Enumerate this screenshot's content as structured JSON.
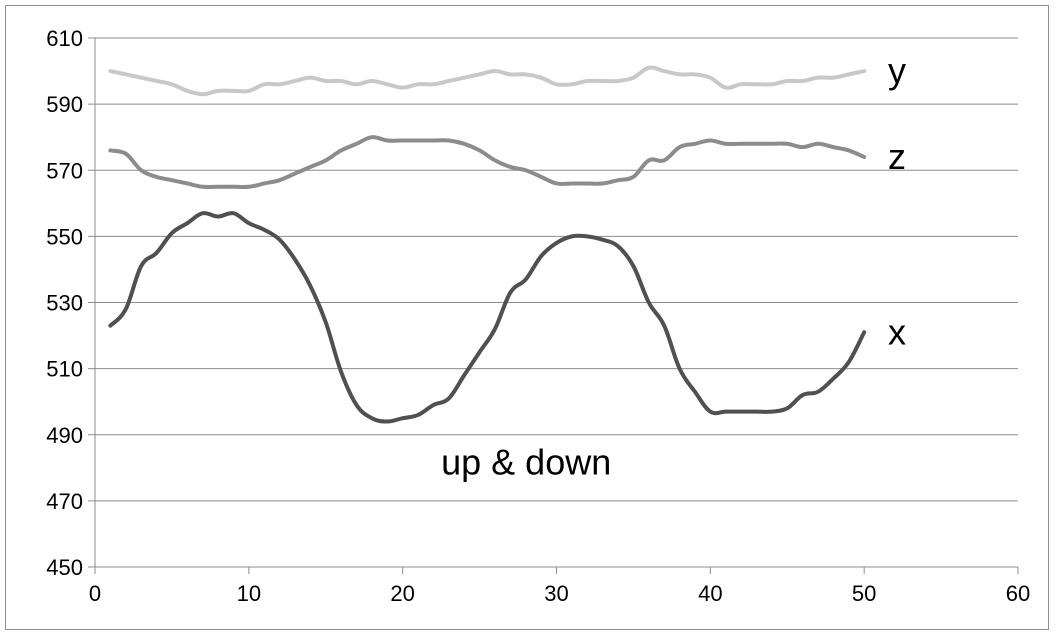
{
  "chart_data": {
    "type": "line",
    "title": "",
    "xlabel": "",
    "ylabel": "",
    "xlim": [
      0,
      60
    ],
    "ylim": [
      450,
      610
    ],
    "x_ticks": [
      "0",
      "10",
      "20",
      "30",
      "40",
      "50",
      "60"
    ],
    "y_ticks": [
      "450",
      "470",
      "490",
      "510",
      "530",
      "550",
      "570",
      "590",
      "610"
    ],
    "grid": "horizontal",
    "legend": "none",
    "annotation": "up & down",
    "series": [
      {
        "name": "y",
        "color": "#c8c8c8",
        "points": [
          [
            1,
            600
          ],
          [
            2,
            599
          ],
          [
            3,
            598
          ],
          [
            4,
            597
          ],
          [
            5,
            596
          ],
          [
            6,
            594
          ],
          [
            7,
            593
          ],
          [
            8,
            594
          ],
          [
            9,
            594
          ],
          [
            10,
            594
          ],
          [
            11,
            596
          ],
          [
            12,
            596
          ],
          [
            13,
            597
          ],
          [
            14,
            598
          ],
          [
            15,
            597
          ],
          [
            16,
            597
          ],
          [
            17,
            596
          ],
          [
            18,
            597
          ],
          [
            19,
            596
          ],
          [
            20,
            595
          ],
          [
            21,
            596
          ],
          [
            22,
            596
          ],
          [
            23,
            597
          ],
          [
            24,
            598
          ],
          [
            25,
            599
          ],
          [
            26,
            600
          ],
          [
            27,
            599
          ],
          [
            28,
            599
          ],
          [
            29,
            598
          ],
          [
            30,
            596
          ],
          [
            31,
            596
          ],
          [
            32,
            597
          ],
          [
            33,
            597
          ],
          [
            34,
            597
          ],
          [
            35,
            598
          ],
          [
            36,
            601
          ],
          [
            37,
            600
          ],
          [
            38,
            599
          ],
          [
            39,
            599
          ],
          [
            40,
            598
          ],
          [
            41,
            595
          ],
          [
            42,
            596
          ],
          [
            43,
            596
          ],
          [
            44,
            596
          ],
          [
            45,
            597
          ],
          [
            46,
            597
          ],
          [
            47,
            598
          ],
          [
            48,
            598
          ],
          [
            49,
            599
          ],
          [
            50,
            600
          ]
        ]
      },
      {
        "name": "z",
        "color": "#8c8c8c",
        "points": [
          [
            1,
            576
          ],
          [
            2,
            575
          ],
          [
            3,
            570
          ],
          [
            4,
            568
          ],
          [
            5,
            567
          ],
          [
            6,
            566
          ],
          [
            7,
            565
          ],
          [
            8,
            565
          ],
          [
            9,
            565
          ],
          [
            10,
            565
          ],
          [
            11,
            566
          ],
          [
            12,
            567
          ],
          [
            13,
            569
          ],
          [
            14,
            571
          ],
          [
            15,
            573
          ],
          [
            16,
            576
          ],
          [
            17,
            578
          ],
          [
            18,
            580
          ],
          [
            19,
            579
          ],
          [
            20,
            579
          ],
          [
            21,
            579
          ],
          [
            22,
            579
          ],
          [
            23,
            579
          ],
          [
            24,
            578
          ],
          [
            25,
            576
          ],
          [
            26,
            573
          ],
          [
            27,
            571
          ],
          [
            28,
            570
          ],
          [
            29,
            568
          ],
          [
            30,
            566
          ],
          [
            31,
            566
          ],
          [
            32,
            566
          ],
          [
            33,
            566
          ],
          [
            34,
            567
          ],
          [
            35,
            568
          ],
          [
            36,
            573
          ],
          [
            37,
            573
          ],
          [
            38,
            577
          ],
          [
            39,
            578
          ],
          [
            40,
            579
          ],
          [
            41,
            578
          ],
          [
            42,
            578
          ],
          [
            43,
            578
          ],
          [
            44,
            578
          ],
          [
            45,
            578
          ],
          [
            46,
            577
          ],
          [
            47,
            578
          ],
          [
            48,
            577
          ],
          [
            49,
            576
          ],
          [
            50,
            574
          ]
        ]
      },
      {
        "name": "x",
        "color": "#505050",
        "points": [
          [
            1,
            523
          ],
          [
            2,
            528
          ],
          [
            3,
            541
          ],
          [
            4,
            545
          ],
          [
            5,
            551
          ],
          [
            6,
            554
          ],
          [
            7,
            557
          ],
          [
            8,
            556
          ],
          [
            9,
            557
          ],
          [
            10,
            554
          ],
          [
            11,
            552
          ],
          [
            12,
            549
          ],
          [
            13,
            543
          ],
          [
            14,
            535
          ],
          [
            15,
            524
          ],
          [
            16,
            509
          ],
          [
            17,
            499
          ],
          [
            18,
            495
          ],
          [
            19,
            494
          ],
          [
            20,
            495
          ],
          [
            21,
            496
          ],
          [
            22,
            499
          ],
          [
            23,
            501
          ],
          [
            24,
            508
          ],
          [
            25,
            515
          ],
          [
            26,
            522
          ],
          [
            27,
            533
          ],
          [
            28,
            537
          ],
          [
            29,
            544
          ],
          [
            30,
            548
          ],
          [
            31,
            550
          ],
          [
            32,
            550
          ],
          [
            33,
            549
          ],
          [
            34,
            547
          ],
          [
            35,
            541
          ],
          [
            36,
            530
          ],
          [
            37,
            523
          ],
          [
            38,
            510
          ],
          [
            39,
            503
          ],
          [
            40,
            497
          ],
          [
            41,
            497
          ],
          [
            42,
            497
          ],
          [
            43,
            497
          ],
          [
            44,
            497
          ],
          [
            45,
            498
          ],
          [
            46,
            502
          ],
          [
            47,
            503
          ],
          [
            48,
            507
          ],
          [
            49,
            512
          ],
          [
            50,
            521
          ]
        ]
      }
    ]
  }
}
